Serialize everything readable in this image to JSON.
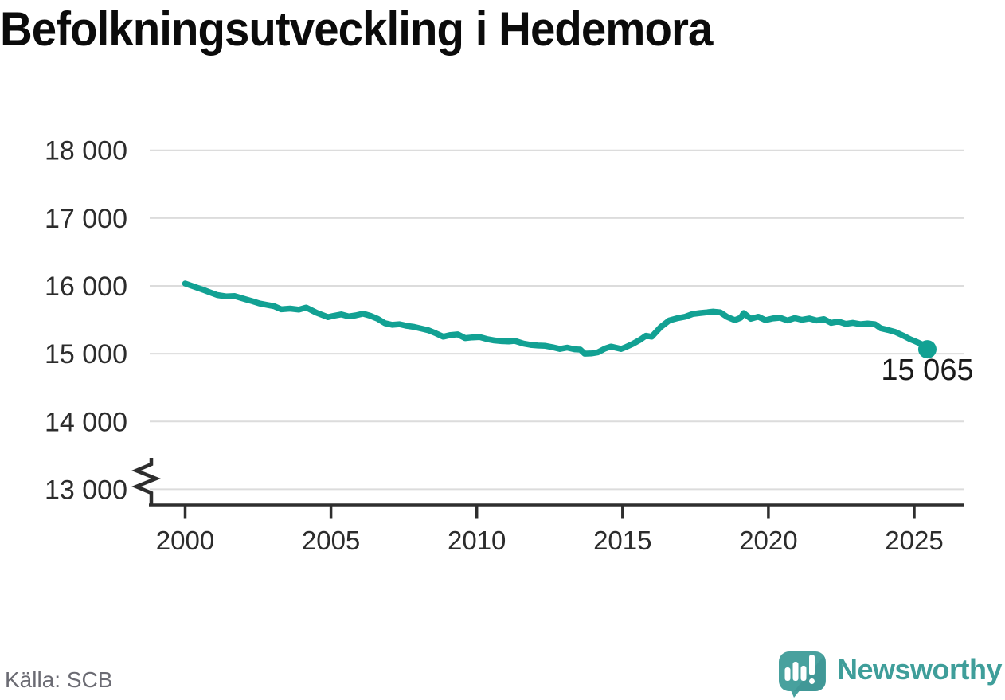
{
  "title": "Befolkningsutveckling i Hedemora",
  "source": "Källa: SCB",
  "branding": {
    "wordmark": "Newsworthy",
    "wordmark_color": "#3f9e9a",
    "bubble_color": "#48a19e",
    "bubble_shade_color": "#3a8f8d",
    "bars_color": "#ffffff"
  },
  "chart_data": {
    "type": "line",
    "title": "Befolkningsutveckling i Hedemora",
    "source": "Källa: SCB",
    "xlabel": "",
    "ylabel": "",
    "grid": "horizontal-only",
    "legend": "none",
    "axis_break_at_bottom": true,
    "xlim": [
      1998.8,
      2026.7
    ],
    "ylim": [
      13000,
      18000
    ],
    "x_ticks": [
      2000,
      2005,
      2010,
      2015,
      2020,
      2025
    ],
    "y_ticks": [
      {
        "value": 18000,
        "label": "18 000"
      },
      {
        "value": 17000,
        "label": "17 000"
      },
      {
        "value": 16000,
        "label": "16 000"
      },
      {
        "value": 15000,
        "label": "15 000"
      },
      {
        "value": 14000,
        "label": "14 000"
      },
      {
        "value": 13000,
        "label": "13 000"
      }
    ],
    "line_color": "#12a193",
    "grid_color": "#dcdcdc",
    "axis_color": "#2e2e2e",
    "tick_label_color": "#2c2c2c",
    "end_label": "15 065",
    "end_point": {
      "x": 2025.45,
      "y": 15065
    },
    "series": [
      {
        "points": [
          [
            2000.0,
            16035
          ],
          [
            2000.3,
            15990
          ],
          [
            2000.6,
            15945
          ],
          [
            2000.85,
            15905
          ],
          [
            2001.1,
            15865
          ],
          [
            2001.4,
            15845
          ],
          [
            2001.7,
            15850
          ],
          [
            2002.05,
            15805
          ],
          [
            2002.3,
            15775
          ],
          [
            2002.55,
            15740
          ],
          [
            2002.8,
            15720
          ],
          [
            2003.05,
            15700
          ],
          [
            2003.3,
            15655
          ],
          [
            2003.6,
            15665
          ],
          [
            2003.9,
            15650
          ],
          [
            2004.15,
            15680
          ],
          [
            2004.5,
            15605
          ],
          [
            2004.9,
            15540
          ],
          [
            2005.1,
            15560
          ],
          [
            2005.35,
            15580
          ],
          [
            2005.6,
            15550
          ],
          [
            2005.85,
            15565
          ],
          [
            2006.1,
            15590
          ],
          [
            2006.35,
            15560
          ],
          [
            2006.6,
            15515
          ],
          [
            2006.85,
            15450
          ],
          [
            2007.1,
            15425
          ],
          [
            2007.35,
            15435
          ],
          [
            2007.6,
            15410
          ],
          [
            2007.85,
            15395
          ],
          [
            2008.1,
            15370
          ],
          [
            2008.35,
            15345
          ],
          [
            2008.6,
            15300
          ],
          [
            2008.85,
            15250
          ],
          [
            2009.1,
            15275
          ],
          [
            2009.35,
            15285
          ],
          [
            2009.6,
            15230
          ],
          [
            2009.85,
            15240
          ],
          [
            2010.1,
            15245
          ],
          [
            2010.35,
            15215
          ],
          [
            2010.6,
            15195
          ],
          [
            2010.85,
            15185
          ],
          [
            2011.1,
            15180
          ],
          [
            2011.3,
            15190
          ],
          [
            2011.6,
            15150
          ],
          [
            2011.85,
            15130
          ],
          [
            2012.1,
            15120
          ],
          [
            2012.35,
            15115
          ],
          [
            2012.6,
            15095
          ],
          [
            2012.85,
            15070
          ],
          [
            2013.1,
            15090
          ],
          [
            2013.35,
            15065
          ],
          [
            2013.55,
            15060
          ],
          [
            2013.7,
            15000
          ],
          [
            2013.95,
            15005
          ],
          [
            2014.15,
            15020
          ],
          [
            2014.4,
            15075
          ],
          [
            2014.6,
            15105
          ],
          [
            2014.95,
            15070
          ],
          [
            2015.1,
            15095
          ],
          [
            2015.35,
            15145
          ],
          [
            2015.6,
            15205
          ],
          [
            2015.8,
            15265
          ],
          [
            2016.0,
            15250
          ],
          [
            2016.3,
            15390
          ],
          [
            2016.6,
            15490
          ],
          [
            2016.9,
            15525
          ],
          [
            2017.15,
            15545
          ],
          [
            2017.4,
            15585
          ],
          [
            2017.65,
            15600
          ],
          [
            2017.9,
            15610
          ],
          [
            2018.1,
            15620
          ],
          [
            2018.35,
            15610
          ],
          [
            2018.6,
            15540
          ],
          [
            2018.85,
            15495
          ],
          [
            2019.05,
            15530
          ],
          [
            2019.15,
            15600
          ],
          [
            2019.4,
            15515
          ],
          [
            2019.65,
            15545
          ],
          [
            2019.9,
            15495
          ],
          [
            2020.15,
            15520
          ],
          [
            2020.4,
            15530
          ],
          [
            2020.65,
            15490
          ],
          [
            2020.9,
            15525
          ],
          [
            2021.15,
            15500
          ],
          [
            2021.4,
            15520
          ],
          [
            2021.65,
            15490
          ],
          [
            2021.9,
            15510
          ],
          [
            2022.15,
            15455
          ],
          [
            2022.4,
            15475
          ],
          [
            2022.65,
            15440
          ],
          [
            2022.9,
            15455
          ],
          [
            2023.15,
            15435
          ],
          [
            2023.4,
            15445
          ],
          [
            2023.65,
            15435
          ],
          [
            2023.85,
            15375
          ],
          [
            2024.1,
            15350
          ],
          [
            2024.35,
            15320
          ],
          [
            2024.6,
            15270
          ],
          [
            2024.85,
            15215
          ],
          [
            2025.05,
            15180
          ],
          [
            2025.25,
            15140
          ],
          [
            2025.45,
            15065
          ]
        ]
      }
    ]
  }
}
